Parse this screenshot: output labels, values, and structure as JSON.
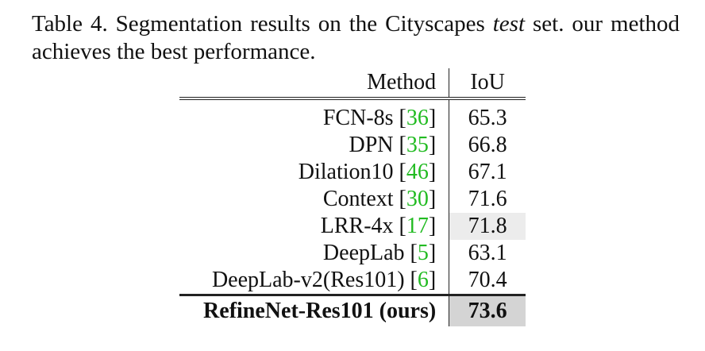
{
  "caption": {
    "prefix": "Table 4. Segmentation results on the Cityscapes ",
    "emph": "test",
    "suffix": " set.  our method achieves the best performance."
  },
  "table": {
    "headers": {
      "method": "Method",
      "iou": "IoU"
    },
    "rows": [
      {
        "name": "FCN-8s [",
        "cite": "36",
        "close": "]",
        "iou": "65.3"
      },
      {
        "name": "DPN [",
        "cite": "35",
        "close": "]",
        "iou": "66.8"
      },
      {
        "name": "Dilation10 [",
        "cite": "46",
        "close": "]",
        "iou": "67.1"
      },
      {
        "name": "Context [",
        "cite": "30",
        "close": "]",
        "iou": "71.6"
      },
      {
        "name": "LRR-4x [",
        "cite": "17",
        "close": "]",
        "iou": "71.8"
      },
      {
        "name": "DeepLab [",
        "cite": "5",
        "close": "]",
        "iou": "63.1"
      },
      {
        "name": "DeepLab-v2(Res101) [",
        "cite": "6",
        "close": "]",
        "iou": "70.4"
      }
    ],
    "ours": {
      "name": "RefineNet-Res101 (ours)",
      "iou": "73.6"
    },
    "colors": {
      "citation": "#22bb22",
      "highlight_light": "#ececec",
      "highlight_dark": "#d4d4d4"
    }
  }
}
